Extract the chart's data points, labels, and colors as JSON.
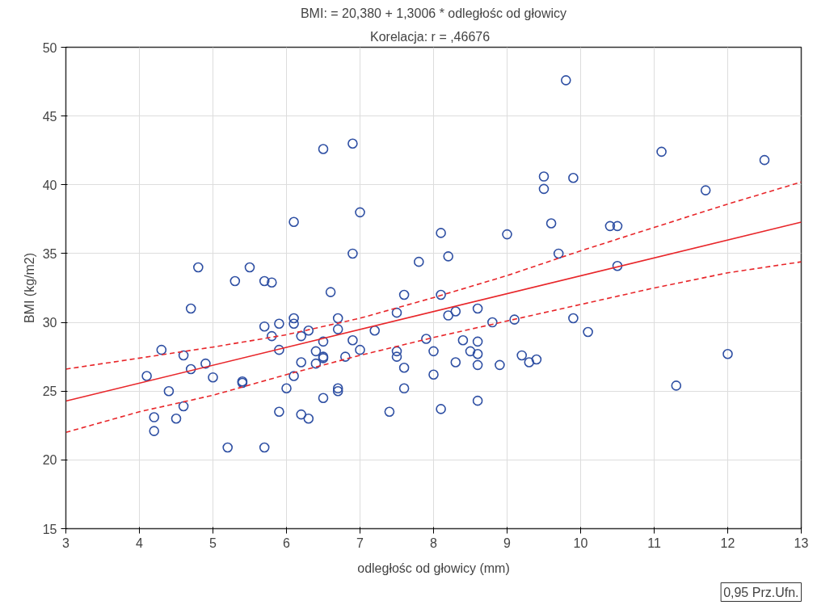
{
  "chart_data": {
    "type": "scatter",
    "title": "BMI: = 20,380 + 1,3006 * odległośc od głowicy",
    "subtitle": "Korelacja: r =   ,46676",
    "xlabel": "odległośc od głowicy (mm)",
    "ylabel": "BMI (kg/m2)",
    "x": [
      4.1,
      4.2,
      4.2,
      4.3,
      4.4,
      4.5,
      4.6,
      4.6,
      4.7,
      4.7,
      4.8,
      4.9,
      5.0,
      5.2,
      5.3,
      5.4,
      5.4,
      5.5,
      5.7,
      5.7,
      5.7,
      5.8,
      5.8,
      5.9,
      5.9,
      5.9,
      6.0,
      6.1,
      6.1,
      6.1,
      6.1,
      6.2,
      6.2,
      6.2,
      6.3,
      6.3,
      6.4,
      6.4,
      6.5,
      6.5,
      6.5,
      6.5,
      6.5,
      6.6,
      6.7,
      6.7,
      6.7,
      6.7,
      6.8,
      6.9,
      6.9,
      6.9,
      7.0,
      7.0,
      7.2,
      7.4,
      7.5,
      7.5,
      7.5,
      7.6,
      7.6,
      7.6,
      7.8,
      7.9,
      8.0,
      8.0,
      8.1,
      8.1,
      8.1,
      8.2,
      8.2,
      8.3,
      8.3,
      8.4,
      8.5,
      8.6,
      8.6,
      8.6,
      8.6,
      8.6,
      8.8,
      8.9,
      9.0,
      9.1,
      9.2,
      9.3,
      9.4,
      9.5,
      9.5,
      9.6,
      9.7,
      9.8,
      9.9,
      9.9,
      10.1,
      10.4,
      10.5,
      10.5,
      11.1,
      11.3,
      11.7,
      12.0,
      12.5
    ],
    "series": [
      {
        "color": "#2e4fa3",
        "marker": "circle",
        "values": [
          26.1,
          23.1,
          22.1,
          28.0,
          25.0,
          23.0,
          27.6,
          23.9,
          31.0,
          26.6,
          34.0,
          27.0,
          26.0,
          20.9,
          33.0,
          25.7,
          25.6,
          34.0,
          33.0,
          29.7,
          20.9,
          32.9,
          29.0,
          29.9,
          28.0,
          23.5,
          25.2,
          37.3,
          30.3,
          29.9,
          26.1,
          29.0,
          27.1,
          23.3,
          29.4,
          23.0,
          27.9,
          27.0,
          42.6,
          28.6,
          27.5,
          27.4,
          24.5,
          32.2,
          30.3,
          29.5,
          25.2,
          25.0,
          27.5,
          43.0,
          35.0,
          28.7,
          38.0,
          28.0,
          29.4,
          23.5,
          30.7,
          27.9,
          27.5,
          32.0,
          26.7,
          25.2,
          34.4,
          28.8,
          27.9,
          26.2,
          36.5,
          32.0,
          23.7,
          34.8,
          30.5,
          30.8,
          27.1,
          28.7,
          27.9,
          31.0,
          28.6,
          27.7,
          26.9,
          24.3,
          30.0,
          26.9,
          36.4,
          30.2,
          27.6,
          27.1,
          27.3,
          40.6,
          39.7,
          37.2,
          35.0,
          47.6,
          40.5,
          30.3,
          29.3,
          37.0,
          37.0,
          34.1,
          42.4,
          25.4,
          39.6,
          27.7,
          41.8
        ]
      },
      {
        "type": "line",
        "color": "#e8262a",
        "line_style": "solid",
        "x": [
          3,
          13
        ],
        "values": [
          24.28,
          37.29
        ]
      },
      {
        "type": "line",
        "color": "#e8262a",
        "line_style": "dashed",
        "x": [
          3,
          4,
          5,
          6,
          7,
          8,
          9,
          10,
          11,
          12,
          13
        ],
        "values": [
          26.6,
          27.4,
          28.2,
          29.1,
          30.3,
          31.8,
          33.4,
          35.2,
          36.9,
          38.6,
          40.2
        ]
      },
      {
        "type": "line",
        "color": "#e8262a",
        "line_style": "dashed",
        "x": [
          3,
          4,
          5,
          6,
          7,
          8,
          9,
          10,
          11,
          12,
          13
        ],
        "values": [
          22.0,
          23.5,
          24.7,
          26.2,
          27.6,
          28.9,
          30.1,
          31.3,
          32.5,
          33.6,
          34.4
        ]
      }
    ],
    "xlim": [
      3,
      13
    ],
    "xticks": [
      3,
      4,
      5,
      6,
      7,
      8,
      9,
      10,
      11,
      12,
      13
    ],
    "ylim": [
      15,
      50
    ],
    "yticks": [
      15,
      20,
      25,
      30,
      35,
      40,
      45,
      50
    ],
    "grid": true,
    "annotations": [
      "0,95 Prz.Ufn."
    ]
  }
}
